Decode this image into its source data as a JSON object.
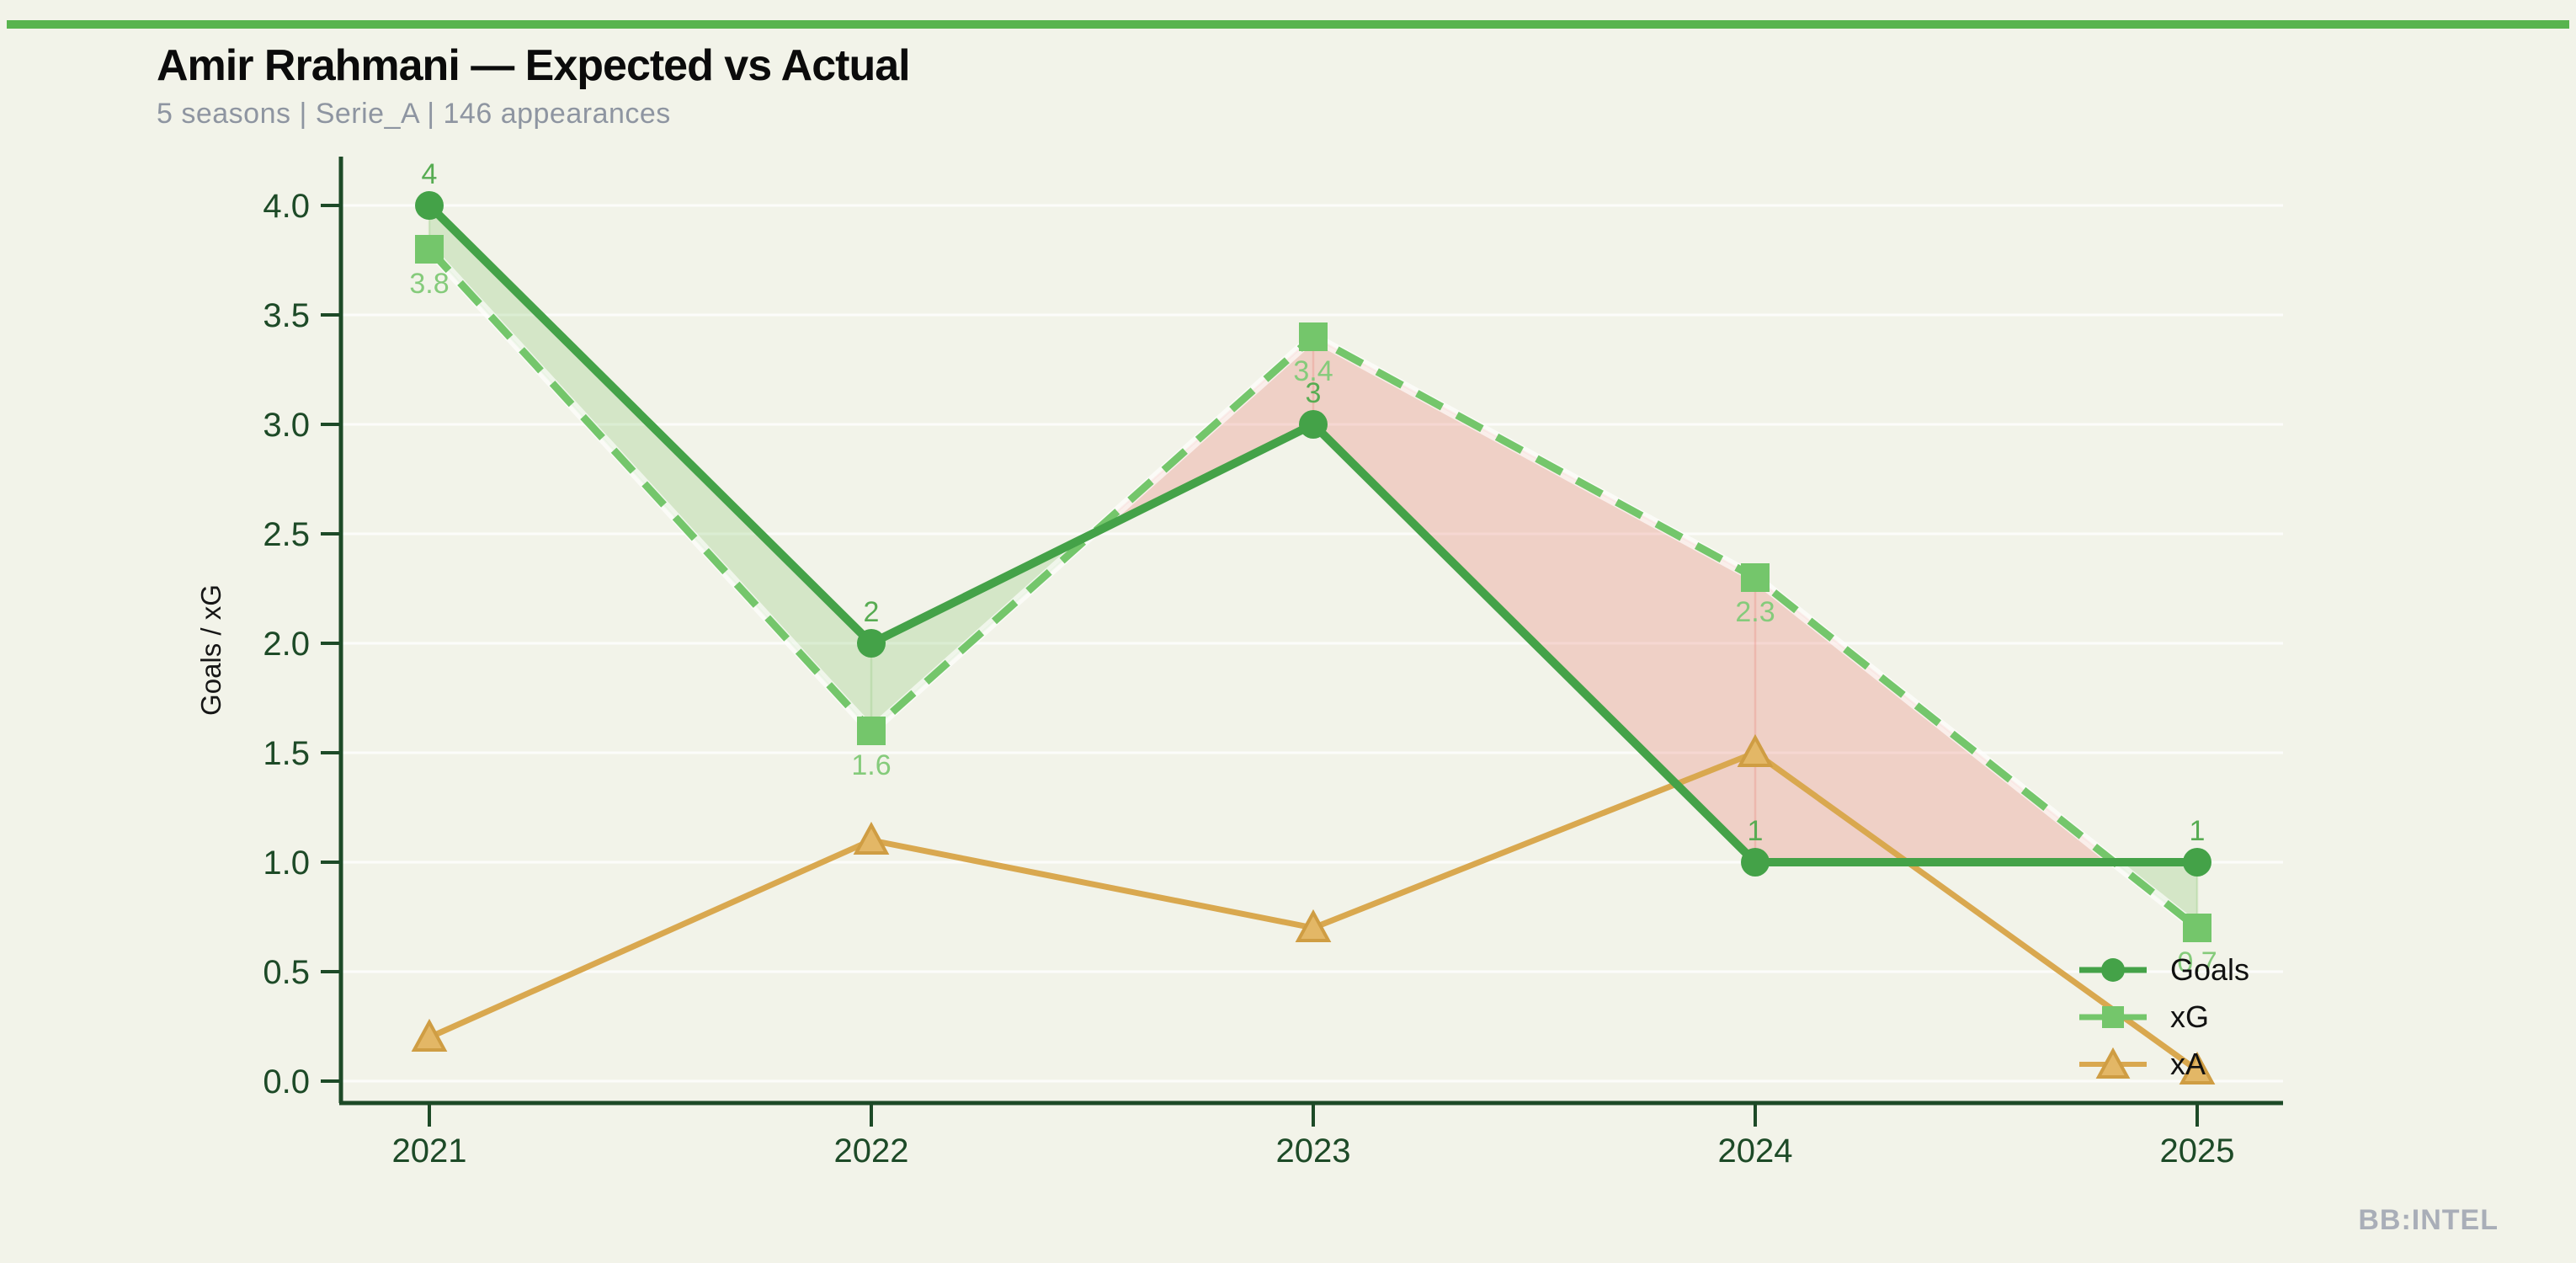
{
  "header": {
    "title": "Amir Rrahmani — Expected vs Actual",
    "subtitle": "5 seasons | Serie_A | 146 appearances"
  },
  "watermark": "BB:INTEL",
  "colors": {
    "background": "#f2f3e9",
    "accent_bar": "#58b44e",
    "axis": "#1d4a27",
    "grid": "rgba(255,255,255,0.75)",
    "fill_overperform_green": "rgba(141,203,124,0.30)",
    "fill_underperform_pink": "rgba(232,128,118,0.30)",
    "subtitle_text": "#8e95a1",
    "legend_text": "#111111",
    "watermark_text": "#a9aeb8",
    "ylabel_text": "#161616"
  },
  "chart_data": {
    "type": "line",
    "title": "Amir Rrahmani — Expected vs Actual",
    "x": [
      "2021",
      "2022",
      "2023",
      "2024",
      "2025"
    ],
    "series": [
      {
        "name": "Goals",
        "values": [
          4,
          2,
          3,
          1,
          1
        ],
        "labels": [
          "4",
          "2",
          "3",
          "1",
          "1"
        ],
        "label_side": "above",
        "color": "#44a248",
        "label_color": "#57ac52",
        "marker": "circle",
        "style": "solid"
      },
      {
        "name": "xG",
        "values": [
          3.8,
          1.6,
          3.4,
          2.3,
          0.7
        ],
        "labels": [
          "3.8",
          "1.6",
          "3.4",
          "2.3",
          "0.7"
        ],
        "label_side": "below",
        "color": "#74c66b",
        "label_color": "#85cb7b",
        "marker": "square",
        "style": "dashed"
      },
      {
        "name": "xA",
        "values": [
          0.2,
          1.1,
          0.7,
          1.5,
          0.05
        ],
        "labels": [],
        "label_side": "none",
        "color": "#d9a84f",
        "marker_fill": "#e3b766",
        "marker_stroke": "#cf9d43",
        "marker": "triangle",
        "style": "solid"
      }
    ],
    "ylabel": "Goals / xG",
    "xlabel": "",
    "ylim": [
      0,
      4.2
    ],
    "yticks": [
      "0.0",
      "0.5",
      "1.0",
      "1.5",
      "2.0",
      "2.5",
      "3.0",
      "3.5",
      "4.0"
    ],
    "grid": "horizontal-faint",
    "legend": [
      "Goals",
      "xG",
      "xA"
    ],
    "legend_position": "lower right"
  }
}
